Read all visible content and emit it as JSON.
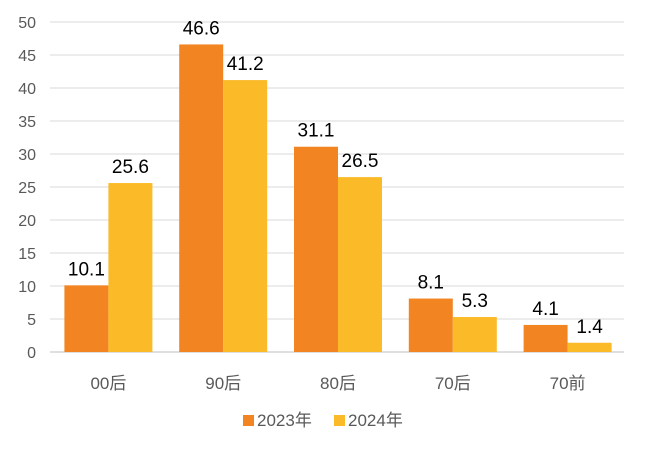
{
  "chart_data": {
    "type": "bar",
    "categories": [
      "00后",
      "90后",
      "80后",
      "70后",
      "70前"
    ],
    "series": [
      {
        "name": "2023年",
        "values": [
          10.1,
          46.6,
          31.1,
          8.1,
          4.1
        ],
        "color": "#F28522"
      },
      {
        "name": "2024年",
        "values": [
          25.6,
          41.2,
          26.5,
          5.3,
          1.4
        ],
        "color": "#FBBB29"
      }
    ],
    "ylim": [
      0,
      50
    ],
    "yticks": [
      0,
      5,
      10,
      15,
      20,
      25,
      30,
      35,
      40,
      45,
      50
    ],
    "grid": true,
    "legend": "bottom",
    "data_labels": true
  }
}
